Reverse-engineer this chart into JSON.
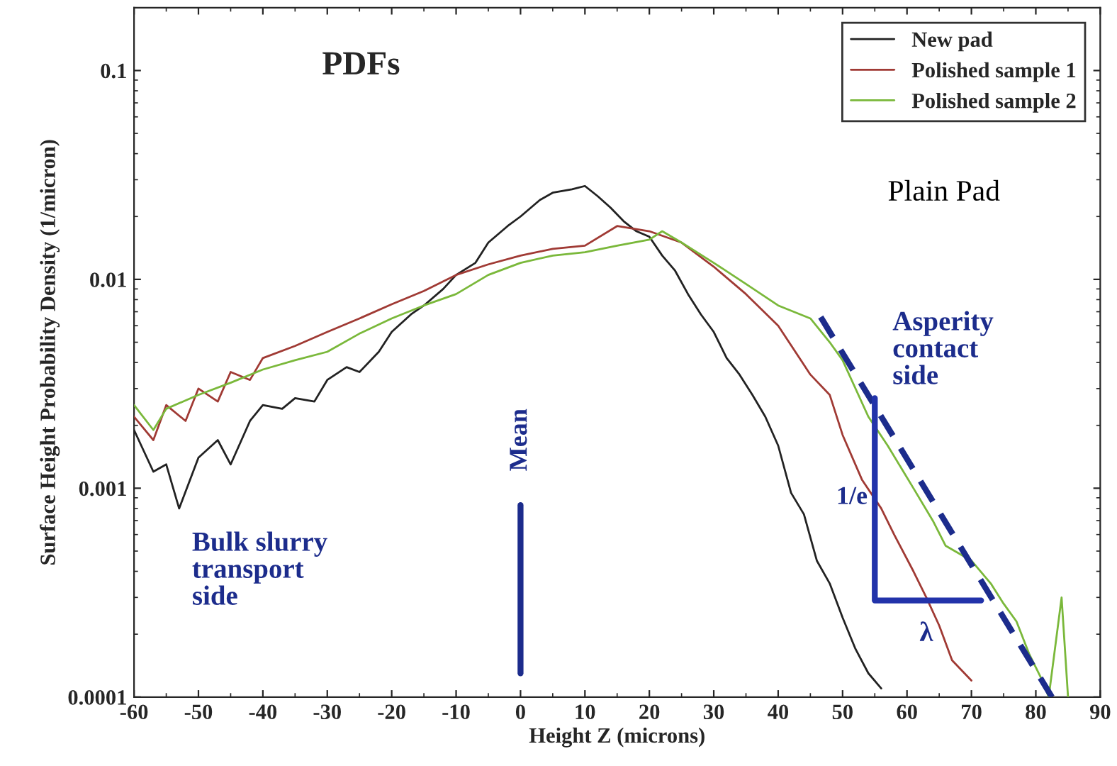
{
  "chart_data": {
    "type": "line",
    "title": "PDFs",
    "xlabel": "Height Z (microns)",
    "ylabel": "Surface Height Probability Density (1/micron)",
    "log": "y",
    "xlim": [
      -60,
      90
    ],
    "xticks": [
      -60,
      -50,
      -40,
      -30,
      -20,
      -10,
      0,
      10,
      20,
      30,
      40,
      50,
      60,
      70,
      80,
      90
    ],
    "ylim": [
      0.0001,
      0.2
    ],
    "yticks": [
      0.0001,
      0.001,
      0.01,
      0.1
    ],
    "legend": "top right",
    "grid": false,
    "series": [
      {
        "name": "New pad",
        "color": "#222222",
        "x": [
          -60,
          -57,
          -55,
          -53,
          -50,
          -47,
          -45,
          -42,
          -40,
          -37,
          -35,
          -32,
          -30,
          -27,
          -25,
          -22,
          -20,
          -17,
          -15,
          -12,
          -10,
          -7,
          -5,
          -2,
          0,
          3,
          5,
          8,
          10,
          12,
          14,
          16,
          18,
          20,
          22,
          24,
          26,
          28,
          30,
          32,
          34,
          36,
          38,
          40,
          42,
          44,
          46,
          48,
          50,
          52,
          54,
          56
        ],
        "values": [
          0.0019,
          0.0012,
          0.0013,
          0.0008,
          0.0014,
          0.0017,
          0.0013,
          0.0021,
          0.0025,
          0.0024,
          0.0027,
          0.0026,
          0.0033,
          0.0038,
          0.0036,
          0.0045,
          0.0056,
          0.0068,
          0.0075,
          0.009,
          0.0105,
          0.012,
          0.015,
          0.018,
          0.02,
          0.024,
          0.026,
          0.027,
          0.028,
          0.025,
          0.022,
          0.019,
          0.017,
          0.016,
          0.013,
          0.011,
          0.0085,
          0.0068,
          0.0056,
          0.0042,
          0.0035,
          0.0028,
          0.0022,
          0.0016,
          0.00095,
          0.00075,
          0.00045,
          0.00035,
          0.00024,
          0.00017,
          0.00013,
          0.00011
        ]
      },
      {
        "name": "Polished sample 1",
        "color": "#a03a34",
        "x": [
          -60,
          -57,
          -55,
          -52,
          -50,
          -47,
          -45,
          -42,
          -40,
          -35,
          -30,
          -25,
          -20,
          -15,
          -10,
          -5,
          0,
          5,
          10,
          15,
          20,
          25,
          30,
          35,
          40,
          45,
          48,
          50,
          53,
          56,
          58,
          61,
          63,
          65,
          67,
          70
        ],
        "values": [
          0.0022,
          0.0017,
          0.0025,
          0.0021,
          0.003,
          0.0026,
          0.0036,
          0.0033,
          0.0042,
          0.0048,
          0.0056,
          0.0065,
          0.0076,
          0.0088,
          0.0105,
          0.0118,
          0.013,
          0.014,
          0.0145,
          0.018,
          0.017,
          0.015,
          0.0115,
          0.0085,
          0.006,
          0.0035,
          0.0028,
          0.0018,
          0.0011,
          0.0008,
          0.0006,
          0.0004,
          0.0003,
          0.00022,
          0.00015,
          0.00012
        ]
      },
      {
        "name": "Polished sample 2",
        "color": "#7ab83a",
        "x": [
          -60,
          -57,
          -55,
          -50,
          -45,
          -40,
          -35,
          -30,
          -25,
          -20,
          -15,
          -10,
          -5,
          0,
          5,
          10,
          15,
          20,
          22,
          25,
          30,
          35,
          40,
          45,
          48,
          50,
          54,
          57,
          61,
          64,
          66,
          70,
          73,
          75,
          77,
          79,
          81,
          82,
          84,
          85
        ],
        "values": [
          0.0025,
          0.0019,
          0.0024,
          0.0028,
          0.0032,
          0.0037,
          0.0041,
          0.0045,
          0.0055,
          0.0065,
          0.0075,
          0.0085,
          0.0105,
          0.012,
          0.013,
          0.0135,
          0.0145,
          0.0155,
          0.017,
          0.015,
          0.012,
          0.0095,
          0.0075,
          0.0065,
          0.005,
          0.0041,
          0.0022,
          0.0016,
          0.001,
          0.0007,
          0.00053,
          0.00045,
          0.00035,
          0.00028,
          0.00023,
          0.00016,
          0.00012,
          0.0001,
          0.0003,
          0.0001
        ]
      },
      {
        "color": "#1c2c8c",
        "line_style": "dashed",
        "x": [
          46.6,
          82.5
        ],
        "values": [
          0.0066,
          0.0001
        ]
      },
      {
        "color": "#1c2c8c",
        "x": [
          0,
          0
        ],
        "values": [
          0.00013,
          0.00083
        ]
      },
      {
        "color": "#2233aa",
        "x": [
          55,
          55,
          71.5
        ],
        "values": [
          0.0027,
          0.00029,
          0.00029
        ]
      }
    ],
    "annotations": [
      "Plain Pad",
      "Asperity\ncontact\nside",
      "Bulk slurry\ntransport\nside",
      "Mean",
      "1/e",
      "λ"
    ]
  }
}
